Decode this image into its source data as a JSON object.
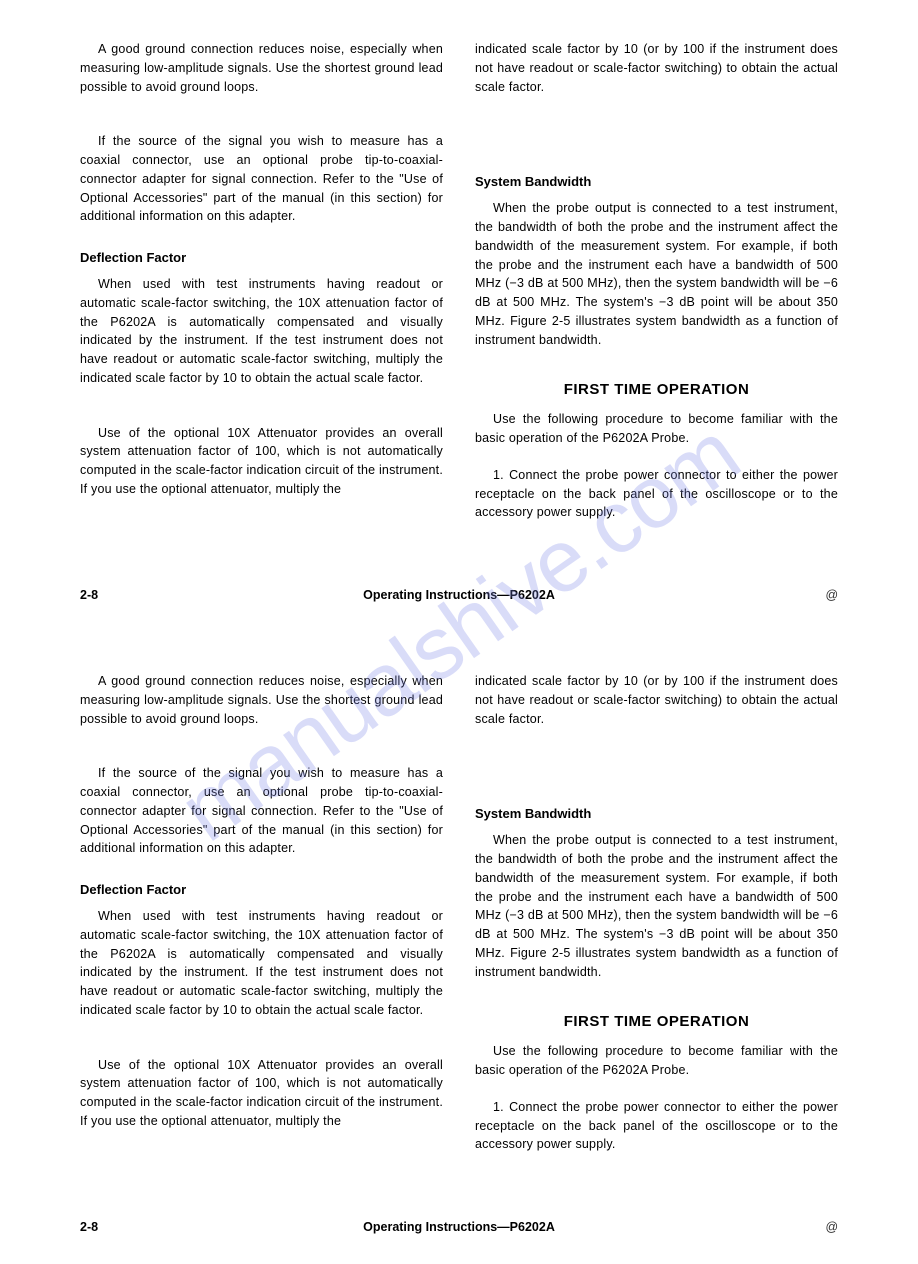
{
  "watermark": "manualshive.com",
  "page1": {
    "left": {
      "p1": "A good ground connection reduces noise, especially when measuring low-amplitude signals. Use the shortest ground lead possible to avoid ground loops.",
      "p2": "If the source of the signal you wish to measure has a coaxial connector, use an optional probe tip-to-coaxial-connector adapter for signal connection. Refer to the \"Use of Optional Accessories\" part of the manual (in this section) for additional information on this adapter.",
      "h1": "Deflection Factor",
      "p3": "When used with test instruments having readout or automatic scale-factor switching, the 10X attenuation factor of the P6202A is automatically compensated and visually indicated by the instrument. If the test instrument does not have readout or automatic scale-factor switching, multiply the indicated scale factor by 10 to obtain the actual scale factor.",
      "p4": "Use of the optional 10X Attenuator provides an overall system attenuation factor of 100, which is not automatically computed in the scale-factor indication circuit of the instrument. If you use the optional attenuator, multiply the"
    },
    "right": {
      "p1": "indicated scale factor by 10 (or by 100 if the instrument does not have readout or scale-factor switching) to obtain the actual scale factor.",
      "h1": "System Bandwidth",
      "p2": "When the probe output is connected to a test instrument, the bandwidth of both the probe and the instrument affect the bandwidth of the measurement system. For example, if both the probe and the instrument each have a bandwidth of 500 MHz (−3 dB at 500 MHz), then the system bandwidth will be −6 dB at 500 MHz. The system's −3 dB point will be about 350 MHz. Figure 2-5 illustrates system bandwidth as a function of instrument bandwidth.",
      "h2": "FIRST TIME OPERATION",
      "p3": "Use the following procedure to become familiar with the basic operation of the P6202A Probe.",
      "p4": "1. Connect the probe power connector to either the power receptacle on the back panel of the oscilloscope or to the accessory power supply."
    },
    "footer": {
      "left": "2-8",
      "center": "Operating Instructions—P6202A",
      "right": "@"
    }
  },
  "page2": {
    "left": {
      "p1": "A good ground connection reduces noise, especially when measuring low-amplitude signals. Use the shortest ground lead possible to avoid ground loops.",
      "p2": "If the source of the signal you wish to measure has a coaxial connector, use an optional probe tip-to-coaxial-connector adapter for signal connection. Refer to the \"Use of Optional Accessories\" part of the manual (in this section) for additional information on this adapter.",
      "h1": "Deflection Factor",
      "p3": "When used with test instruments having readout or automatic scale-factor switching, the 10X attenuation factor of the P6202A is automatically compensated and visually indicated by the instrument. If the test instrument does not have readout or automatic scale-factor switching, multiply the indicated scale factor by 10 to obtain the actual scale factor.",
      "p4": "Use of the optional 10X Attenuator provides an overall system attenuation factor of 100, which is not automatically computed in the scale-factor indication circuit of the instrument. If you use the optional attenuator, multiply the"
    },
    "right": {
      "p1": "indicated scale factor by 10 (or by 100 if the instrument does not have readout or scale-factor switching) to obtain the actual scale factor.",
      "h1": "System Bandwidth",
      "p2": "When the probe output is connected to a test instrument, the bandwidth of both the probe and the instrument affect the bandwidth of the measurement system. For example, if both the probe and the instrument each have a bandwidth of 500 MHz (−3 dB at 500 MHz), then the system bandwidth will be −6 dB at 500 MHz. The system's −3 dB point will be about 350 MHz. Figure 2-5 illustrates system bandwidth as a function of instrument bandwidth.",
      "h2": "FIRST TIME OPERATION",
      "p3": "Use the following procedure to become familiar with the basic operation of the P6202A Probe.",
      "p4": "1. Connect the probe power connector to either the power receptacle on the back panel of the oscilloscope or to the accessory power supply."
    },
    "footer": {
      "left": "2-8",
      "center": "Operating Instructions—P6202A",
      "right": "@"
    }
  }
}
